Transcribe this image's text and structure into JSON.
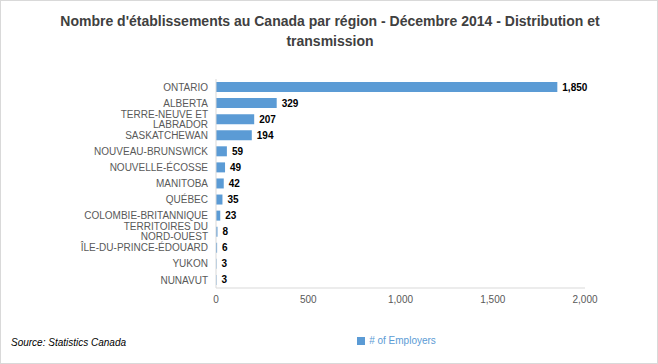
{
  "chart_data": {
    "type": "bar",
    "title": "Nombre d'établissements au Canada par région - Décembre 2014 - Distribution et transmission",
    "orientation": "horizontal",
    "categories": [
      "ONTARIO",
      "ALBERTA",
      "TERRE-NEUVE ET LABRADOR",
      "SASKATCHEWAN",
      "NOUVEAU-BRUNSWICK",
      "NOUVELLE-ÉCOSSE",
      "MANITOBA",
      "QUÉBEC",
      "COLOMBIE-BRITANNIQUE",
      "TERRITOIRES DU NORD-OUEST",
      "ÎLE-DU-PRINCE-ÉDOUARD",
      "YUKON",
      "NUNAVUT"
    ],
    "series": [
      {
        "name": "# of Employers",
        "color": "#5b9bd5",
        "values": [
          1850,
          329,
          207,
          194,
          59,
          49,
          42,
          35,
          23,
          8,
          6,
          3,
          3
        ],
        "value_labels": [
          "1,850",
          "329",
          "207",
          "194",
          "59",
          "49",
          "42",
          "35",
          "23",
          "8",
          "6",
          "3",
          "3"
        ]
      }
    ],
    "xlim": [
      0,
      2000
    ],
    "xticks": [
      0,
      500,
      {
        "value": 1000,
        "label": "1,000"
      },
      {
        "value": 1500,
        "label": "1,500"
      },
      {
        "value": 2000,
        "label": "2,000"
      }
    ],
    "data_labels": true,
    "grid": false,
    "legend": "bottom",
    "annotations": [
      "Source: Statistics Canada"
    ]
  }
}
